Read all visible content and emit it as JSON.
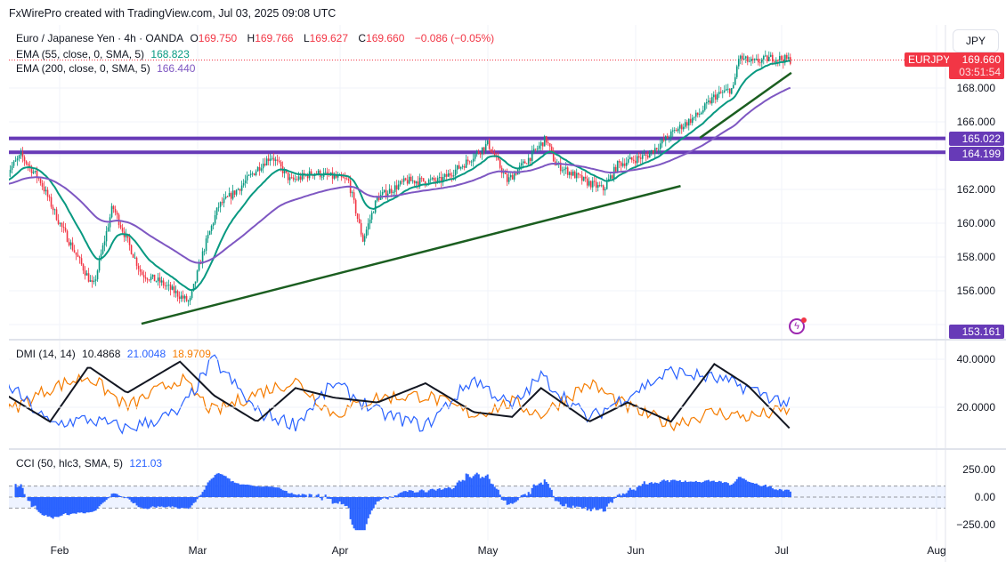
{
  "credit": "FxWirePro created with TradingView.com, Jul 03, 2025 09:08 UTC",
  "legend": {
    "symbol": "Euro / Japanese Yen · 4h · OANDA",
    "o_label": "O",
    "o": "169.750",
    "h_label": "H",
    "h": "169.766",
    "l_label": "L",
    "l": "169.627",
    "c_label": "C",
    "c": "169.660",
    "change": "−0.086 (−0.05%)",
    "ema55_label": "EMA (55, close, 0, SMA, 5)",
    "ema55": "168.823",
    "ema200_label": "EMA (200, close, 0, SMA, 5)",
    "ema200": "166.440",
    "dmi_label": "DMI (14, 14)",
    "dmi_adx": "10.4868",
    "dmi_plus": "21.0048",
    "dmi_minus": "18.9709",
    "cci_label": "CCI (50, hlc3, SMA, 5)",
    "cci": "121.03"
  },
  "currency_button": "JPY",
  "price_tags": {
    "symbol": "EURJPY",
    "last": "169.660",
    "countdown": "03:51:54",
    "res1": "165.022",
    "res2": "164.199",
    "low": "153.161"
  },
  "colors": {
    "up": "#089981",
    "down": "#f23645",
    "ema55": "#089981",
    "ema200": "#7e57c2",
    "hline": "#673ab7",
    "trend": "#1b5e20",
    "adx": "#131722",
    "plus": "#2962ff",
    "minus": "#f57c00",
    "cci": "#2962ff"
  },
  "chart_data": {
    "type": "candlestick",
    "title": "Euro / Japanese Yen · 4h · OANDA",
    "x_ticks": [
      "Feb",
      "Mar",
      "Apr",
      "May",
      "Jun",
      "Jul",
      "Aug"
    ],
    "y_ticks": [
      "168.000",
      "166.000",
      "162.000",
      "160.000",
      "158.000",
      "156.000"
    ],
    "ylim": [
      153.5,
      171
    ],
    "price_path": [
      [
        "2025-01-21",
        163.0
      ],
      [
        "2025-01-24",
        164.0
      ],
      [
        "2025-01-28",
        162.5
      ],
      [
        "2025-02-01",
        160.0
      ],
      [
        "2025-02-08",
        156.2
      ],
      [
        "2025-02-12",
        161.0
      ],
      [
        "2025-02-18",
        157.0
      ],
      [
        "2025-02-22",
        156.5
      ],
      [
        "2025-02-28",
        155.3
      ],
      [
        "2025-03-03",
        158.5
      ],
      [
        "2025-03-06",
        161.0
      ],
      [
        "2025-03-10",
        162.0
      ],
      [
        "2025-03-15",
        163.5
      ],
      [
        "2025-03-17",
        164.0
      ],
      [
        "2025-03-21",
        162.5
      ],
      [
        "2025-03-26",
        163.0
      ],
      [
        "2025-04-02",
        162.5
      ],
      [
        "2025-04-05",
        159.0
      ],
      [
        "2025-04-08",
        161.5
      ],
      [
        "2025-04-14",
        162.5
      ],
      [
        "2025-04-21",
        162.5
      ],
      [
        "2025-04-26",
        163.5
      ],
      [
        "2025-05-01",
        164.7
      ],
      [
        "2025-05-05",
        162.5
      ],
      [
        "2025-05-10",
        164.0
      ],
      [
        "2025-05-13",
        165.0
      ],
      [
        "2025-05-15",
        163.5
      ],
      [
        "2025-05-21",
        162.5
      ],
      [
        "2025-05-25",
        162.0
      ],
      [
        "2025-05-28",
        163.5
      ],
      [
        "2025-06-03",
        164.0
      ],
      [
        "2025-06-09",
        165.5
      ],
      [
        "2025-06-14",
        166.5
      ],
      [
        "2025-06-17",
        167.5
      ],
      [
        "2025-06-21",
        168.0
      ],
      [
        "2025-06-22",
        169.8
      ],
      [
        "2025-06-25",
        169.5
      ],
      [
        "2025-06-29",
        169.8
      ],
      [
        "2025-07-03",
        169.66
      ]
    ],
    "horizontal_levels": [
      165.022,
      164.199
    ],
    "trendlines": [
      {
        "from": [
          "2025-02-18",
          154.05
        ],
        "to": [
          "2025-06-10",
          162.2
        ]
      },
      {
        "from": [
          "2025-06-14",
          165.05
        ],
        "to": [
          "2025-07-03",
          168.9
        ]
      }
    ],
    "dmi": {
      "ylim": [
        5,
        45
      ],
      "y_ticks": [
        "40.0000",
        "20.0000"
      ],
      "adx": [
        [
          "2025-01-21",
          25
        ],
        [
          "2025-01-30",
          14
        ],
        [
          "2025-02-07",
          37
        ],
        [
          "2025-02-15",
          26
        ],
        [
          "2025-02-26",
          39
        ],
        [
          "2025-03-05",
          25
        ],
        [
          "2025-03-14",
          14
        ],
        [
          "2025-03-22",
          28
        ],
        [
          "2025-03-30",
          24
        ],
        [
          "2025-04-08",
          22
        ],
        [
          "2025-04-18",
          30
        ],
        [
          "2025-04-28",
          18
        ],
        [
          "2025-05-06",
          16
        ],
        [
          "2025-05-12",
          28
        ],
        [
          "2025-05-22",
          14
        ],
        [
          "2025-05-30",
          22
        ],
        [
          "2025-06-08",
          14
        ],
        [
          "2025-06-17",
          38
        ],
        [
          "2025-06-24",
          29
        ],
        [
          "2025-07-03",
          10.5
        ]
      ],
      "plus": [
        [
          "2025-01-21",
          30
        ],
        [
          "2025-01-30",
          13
        ],
        [
          "2025-02-07",
          15
        ],
        [
          "2025-02-15",
          11
        ],
        [
          "2025-02-26",
          18
        ],
        [
          "2025-03-05",
          40
        ],
        [
          "2025-03-14",
          18
        ],
        [
          "2025-03-22",
          13
        ],
        [
          "2025-03-30",
          30
        ],
        [
          "2025-04-08",
          18
        ],
        [
          "2025-04-18",
          12
        ],
        [
          "2025-04-28",
          32
        ],
        [
          "2025-05-06",
          20
        ],
        [
          "2025-05-12",
          33
        ],
        [
          "2025-05-22",
          15
        ],
        [
          "2025-05-30",
          25
        ],
        [
          "2025-06-08",
          35
        ],
        [
          "2025-06-17",
          32
        ],
        [
          "2025-06-24",
          28
        ],
        [
          "2025-07-03",
          21.0
        ]
      ],
      "minus": [
        [
          "2025-01-21",
          18
        ],
        [
          "2025-01-30",
          28
        ],
        [
          "2025-02-07",
          33
        ],
        [
          "2025-02-15",
          20
        ],
        [
          "2025-02-26",
          32
        ],
        [
          "2025-03-05",
          18
        ],
        [
          "2025-03-14",
          26
        ],
        [
          "2025-03-22",
          31
        ],
        [
          "2025-03-30",
          17
        ],
        [
          "2025-04-08",
          24
        ],
        [
          "2025-04-18",
          25
        ],
        [
          "2025-04-28",
          17
        ],
        [
          "2025-05-06",
          22
        ],
        [
          "2025-05-12",
          17
        ],
        [
          "2025-05-22",
          30
        ],
        [
          "2025-05-30",
          20
        ],
        [
          "2025-06-08",
          13
        ],
        [
          "2025-06-17",
          18
        ],
        [
          "2025-06-24",
          16
        ],
        [
          "2025-07-03",
          19.0
        ]
      ]
    },
    "cci": {
      "ylim": [
        -330,
        330
      ],
      "y_ticks": [
        "250.00",
        "0.00",
        "−250.00"
      ],
      "bands": [
        100,
        -100
      ]
    }
  }
}
